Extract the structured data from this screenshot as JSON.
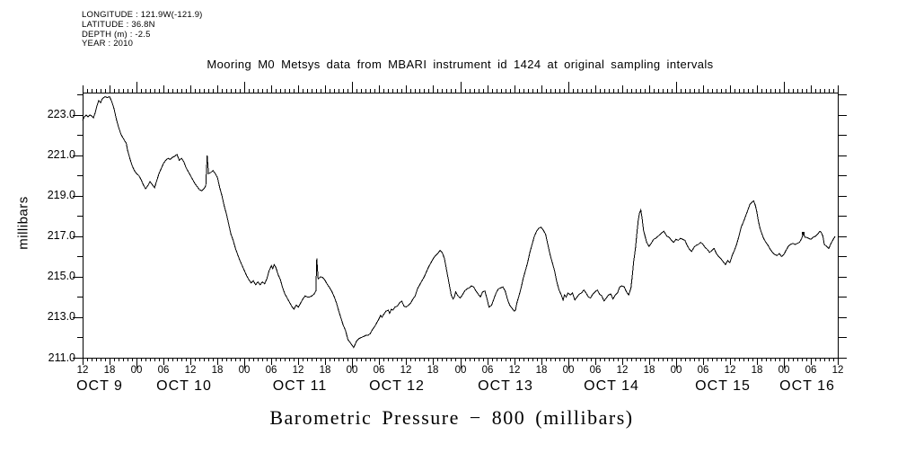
{
  "header": {
    "meta_lines": [
      "LONGITUDE : 121.9W(-121.9)",
      "LATITUDE : 36.8N",
      "DEPTH (m) : -2.5",
      "YEAR : 2010"
    ],
    "title": "Mooring M0 Metsys data from MBARI instrument id 1424 at original sampling intervals"
  },
  "footer": {
    "x_axis_title": "Barometric Pressure − 800 (millibars)"
  },
  "chart_data": {
    "type": "line",
    "title": "Mooring M0 Metsys data from MBARI instrument id 1424 at original sampling intervals",
    "ylabel": "millibars",
    "xlabel": "Barometric Pressure − 800 (millibars)",
    "line_color": "#000000",
    "background_color": "#ffffff",
    "grid": false,
    "ylim": [
      211.0,
      224.1
    ],
    "xlim_hours": [
      0,
      168
    ],
    "x_epoch": "2010-10-09 12:00",
    "y_tick_labels": [
      "223.0",
      "221.0",
      "219.0",
      "217.0",
      "215.0",
      "213.0",
      "211.0"
    ],
    "y_minor_tick_step": 1,
    "x_hour_label_step": 6,
    "x_minor_tick_step_hours": 1,
    "x_hour_labels": [
      "12",
      "18",
      "00",
      "06",
      "12",
      "18",
      "00",
      "06",
      "12",
      "18",
      "00",
      "06",
      "12",
      "18",
      "00",
      "06",
      "12",
      "18",
      "00",
      "06",
      "12",
      "18",
      "00",
      "06",
      "12",
      "18",
      "00",
      "06",
      "12"
    ],
    "x_date_labels": [
      {
        "label": "OCT 9",
        "hour": 3.8
      },
      {
        "label": "OCT 10",
        "hour": 22.6
      },
      {
        "label": "OCT 11",
        "hour": 48.3
      },
      {
        "label": "OCT 12",
        "hour": 69.9
      },
      {
        "label": "OCT 13",
        "hour": 94.1
      },
      {
        "label": "OCT 14",
        "hour": 117.7
      },
      {
        "label": "OCT 15",
        "hour": 142.4
      },
      {
        "label": "OCT 16",
        "hour": 161.2
      }
    ],
    "marker_point": {
      "hour": 160.3,
      "value": 217.15
    },
    "points": [
      [
        0,
        222.75
      ],
      [
        0.4,
        222.9
      ],
      [
        0.8,
        223.0
      ],
      [
        1.2,
        222.9
      ],
      [
        1.6,
        223.0
      ],
      [
        2,
        222.95
      ],
      [
        2.4,
        222.85
      ],
      [
        2.8,
        223.1
      ],
      [
        3.2,
        223.45
      ],
      [
        3.6,
        223.7
      ],
      [
        4,
        223.6
      ],
      [
        4.4,
        223.8
      ],
      [
        5,
        223.9
      ],
      [
        5.5,
        223.85
      ],
      [
        6,
        223.9
      ],
      [
        6.5,
        223.65
      ],
      [
        7,
        223.3
      ],
      [
        7.5,
        222.8
      ],
      [
        8,
        222.4
      ],
      [
        8.5,
        222.05
      ],
      [
        9,
        221.85
      ],
      [
        9.4,
        221.7
      ],
      [
        9.7,
        221.6
      ],
      [
        10,
        221.25
      ],
      [
        10.5,
        220.85
      ],
      [
        11,
        220.5
      ],
      [
        11.5,
        220.25
      ],
      [
        12,
        220.1
      ],
      [
        12.5,
        220.0
      ],
      [
        13,
        219.8
      ],
      [
        13.5,
        219.55
      ],
      [
        14,
        219.35
      ],
      [
        14.5,
        219.5
      ],
      [
        15,
        219.7
      ],
      [
        15.5,
        219.55
      ],
      [
        16,
        219.4
      ],
      [
        16.5,
        219.75
      ],
      [
        17,
        220.1
      ],
      [
        17.5,
        220.35
      ],
      [
        18,
        220.6
      ],
      [
        18.5,
        220.75
      ],
      [
        19,
        220.85
      ],
      [
        19.5,
        220.8
      ],
      [
        20,
        220.9
      ],
      [
        20.5,
        220.95
      ],
      [
        21,
        221.05
      ],
      [
        21.5,
        220.75
      ],
      [
        22,
        220.85
      ],
      [
        22.5,
        220.7
      ],
      [
        23,
        220.4
      ],
      [
        23.5,
        220.2
      ],
      [
        24,
        220.0
      ],
      [
        24.5,
        219.8
      ],
      [
        25,
        219.6
      ],
      [
        25.5,
        219.45
      ],
      [
        26,
        219.3
      ],
      [
        26.5,
        219.25
      ],
      [
        27,
        219.35
      ],
      [
        27.4,
        219.5
      ],
      [
        27.7,
        221.0
      ],
      [
        28,
        220.1
      ],
      [
        28.5,
        220.15
      ],
      [
        29,
        220.25
      ],
      [
        29.5,
        220.1
      ],
      [
        30,
        219.9
      ],
      [
        30.5,
        219.4
      ],
      [
        31,
        219.0
      ],
      [
        31.5,
        218.5
      ],
      [
        32,
        218.1
      ],
      [
        32.5,
        217.6
      ],
      [
        33,
        217.1
      ],
      [
        33.5,
        216.8
      ],
      [
        34,
        216.4
      ],
      [
        34.5,
        216.1
      ],
      [
        35,
        215.8
      ],
      [
        35.5,
        215.55
      ],
      [
        36,
        215.3
      ],
      [
        36.5,
        215.05
      ],
      [
        37,
        214.85
      ],
      [
        37.5,
        214.7
      ],
      [
        38,
        214.8
      ],
      [
        38.5,
        214.6
      ],
      [
        39,
        214.75
      ],
      [
        39.5,
        214.6
      ],
      [
        40,
        214.75
      ],
      [
        40.5,
        214.65
      ],
      [
        41,
        214.9
      ],
      [
        41.5,
        215.3
      ],
      [
        42,
        215.55
      ],
      [
        42.3,
        215.4
      ],
      [
        42.6,
        215.6
      ],
      [
        43,
        215.45
      ],
      [
        43.5,
        215.1
      ],
      [
        44,
        214.85
      ],
      [
        44.5,
        214.45
      ],
      [
        45,
        214.15
      ],
      [
        45.5,
        213.95
      ],
      [
        46,
        213.75
      ],
      [
        46.5,
        213.55
      ],
      [
        47,
        213.4
      ],
      [
        47.5,
        213.6
      ],
      [
        48,
        213.5
      ],
      [
        48.5,
        213.7
      ],
      [
        49,
        213.9
      ],
      [
        49.5,
        214.05
      ],
      [
        50,
        214.0
      ],
      [
        50.5,
        214.0
      ],
      [
        51,
        214.05
      ],
      [
        51.5,
        214.15
      ],
      [
        51.9,
        214.3
      ],
      [
        52.1,
        215.9
      ],
      [
        52.4,
        214.9
      ],
      [
        53,
        215.0
      ],
      [
        53.5,
        214.95
      ],
      [
        54,
        214.8
      ],
      [
        54.5,
        214.6
      ],
      [
        55,
        214.45
      ],
      [
        55.5,
        214.25
      ],
      [
        56,
        214.0
      ],
      [
        56.5,
        213.7
      ],
      [
        57,
        213.3
      ],
      [
        57.5,
        212.95
      ],
      [
        58,
        212.6
      ],
      [
        58.5,
        212.35
      ],
      [
        59,
        211.9
      ],
      [
        59.5,
        211.75
      ],
      [
        60,
        211.6
      ],
      [
        60.3,
        211.5
      ],
      [
        60.7,
        211.7
      ],
      [
        61,
        211.85
      ],
      [
        61.5,
        211.95
      ],
      [
        62,
        212.0
      ],
      [
        62.5,
        212.05
      ],
      [
        63,
        212.1
      ],
      [
        63.5,
        212.1
      ],
      [
        64,
        212.2
      ],
      [
        64.5,
        212.4
      ],
      [
        65,
        212.55
      ],
      [
        65.5,
        212.75
      ],
      [
        66,
        212.95
      ],
      [
        66.3,
        213.1
      ],
      [
        66.6,
        213.0
      ],
      [
        67,
        213.15
      ],
      [
        67.5,
        213.3
      ],
      [
        68,
        213.35
      ],
      [
        68.3,
        213.2
      ],
      [
        68.7,
        213.4
      ],
      [
        69,
        213.35
      ],
      [
        69.5,
        213.5
      ],
      [
        70,
        213.55
      ],
      [
        70.5,
        213.7
      ],
      [
        71,
        213.8
      ],
      [
        71.5,
        213.55
      ],
      [
        72,
        213.5
      ],
      [
        72.5,
        213.6
      ],
      [
        73,
        213.7
      ],
      [
        73.5,
        213.9
      ],
      [
        74,
        214.05
      ],
      [
        74.5,
        214.4
      ],
      [
        75,
        214.6
      ],
      [
        75.5,
        214.8
      ],
      [
        76,
        215.0
      ],
      [
        76.5,
        215.25
      ],
      [
        77,
        215.5
      ],
      [
        77.5,
        215.7
      ],
      [
        78,
        215.9
      ],
      [
        78.5,
        216.05
      ],
      [
        79,
        216.15
      ],
      [
        79.5,
        216.3
      ],
      [
        80,
        216.2
      ],
      [
        80.5,
        215.9
      ],
      [
        81,
        215.3
      ],
      [
        81.5,
        214.7
      ],
      [
        82,
        214.1
      ],
      [
        82.4,
        213.9
      ],
      [
        82.7,
        214.0
      ],
      [
        83,
        214.25
      ],
      [
        83.5,
        214.05
      ],
      [
        84,
        213.95
      ],
      [
        84.5,
        214.1
      ],
      [
        85,
        214.3
      ],
      [
        85.5,
        214.4
      ],
      [
        86,
        214.45
      ],
      [
        86.5,
        214.55
      ],
      [
        87,
        214.5
      ],
      [
        87.5,
        214.3
      ],
      [
        88,
        214.15
      ],
      [
        88.5,
        214.0
      ],
      [
        89,
        214.25
      ],
      [
        89.5,
        214.3
      ],
      [
        90,
        213.9
      ],
      [
        90.4,
        213.5
      ],
      [
        91,
        213.6
      ],
      [
        91.5,
        213.9
      ],
      [
        92,
        214.2
      ],
      [
        92.5,
        214.4
      ],
      [
        93,
        214.45
      ],
      [
        93.5,
        214.5
      ],
      [
        94,
        214.3
      ],
      [
        94.5,
        213.9
      ],
      [
        95,
        213.6
      ],
      [
        95.5,
        213.45
      ],
      [
        96,
        213.3
      ],
      [
        96.3,
        213.35
      ],
      [
        96.6,
        213.7
      ],
      [
        97,
        214.0
      ],
      [
        97.5,
        214.4
      ],
      [
        98,
        214.9
      ],
      [
        98.5,
        215.3
      ],
      [
        99,
        215.7
      ],
      [
        99.5,
        216.2
      ],
      [
        100,
        216.6
      ],
      [
        100.5,
        217.0
      ],
      [
        101,
        217.25
      ],
      [
        101.5,
        217.4
      ],
      [
        102,
        217.45
      ],
      [
        102.5,
        217.3
      ],
      [
        103,
        217.1
      ],
      [
        103.5,
        216.6
      ],
      [
        104,
        216.1
      ],
      [
        104.5,
        215.7
      ],
      [
        105,
        215.3
      ],
      [
        105.5,
        214.75
      ],
      [
        106,
        214.35
      ],
      [
        106.5,
        214.1
      ],
      [
        106.9,
        213.85
      ],
      [
        107.2,
        214.1
      ],
      [
        107.6,
        214.0
      ],
      [
        108,
        214.2
      ],
      [
        108.5,
        214.1
      ],
      [
        109,
        214.2
      ],
      [
        109.5,
        213.85
      ],
      [
        110,
        214.0
      ],
      [
        110.5,
        214.15
      ],
      [
        111,
        214.2
      ],
      [
        111.5,
        214.35
      ],
      [
        112,
        214.2
      ],
      [
        112.5,
        214.0
      ],
      [
        113,
        213.95
      ],
      [
        113.5,
        214.15
      ],
      [
        114,
        214.25
      ],
      [
        114.5,
        214.35
      ],
      [
        115,
        214.15
      ],
      [
        115.5,
        214.05
      ],
      [
        116,
        213.8
      ],
      [
        116.5,
        213.95
      ],
      [
        117,
        214.1
      ],
      [
        117.5,
        214.15
      ],
      [
        118,
        213.9
      ],
      [
        118.5,
        214.1
      ],
      [
        119,
        214.2
      ],
      [
        119.5,
        214.5
      ],
      [
        120,
        214.55
      ],
      [
        120.5,
        214.5
      ],
      [
        121,
        214.25
      ],
      [
        121.5,
        214.1
      ],
      [
        122,
        214.45
      ],
      [
        122.3,
        215.05
      ],
      [
        122.6,
        215.75
      ],
      [
        123,
        216.4
      ],
      [
        123.3,
        217.1
      ],
      [
        123.6,
        217.75
      ],
      [
        123.9,
        218.15
      ],
      [
        124.2,
        218.3
      ],
      [
        124.5,
        217.85
      ],
      [
        124.8,
        217.3
      ],
      [
        125.2,
        216.95
      ],
      [
        125.5,
        216.7
      ],
      [
        126,
        216.5
      ],
      [
        126.5,
        216.65
      ],
      [
        127,
        216.85
      ],
      [
        127.5,
        216.9
      ],
      [
        128,
        217.0
      ],
      [
        128.5,
        217.1
      ],
      [
        129,
        217.2
      ],
      [
        129.3,
        217.25
      ],
      [
        129.7,
        217.1
      ],
      [
        130,
        217.0
      ],
      [
        130.5,
        216.95
      ],
      [
        131,
        216.8
      ],
      [
        131.5,
        216.7
      ],
      [
        132,
        216.85
      ],
      [
        132.5,
        216.8
      ],
      [
        133,
        216.9
      ],
      [
        133.5,
        216.85
      ],
      [
        134,
        216.8
      ],
      [
        134.5,
        216.55
      ],
      [
        135,
        216.35
      ],
      [
        135.5,
        216.25
      ],
      [
        136,
        216.45
      ],
      [
        136.5,
        216.55
      ],
      [
        137,
        216.6
      ],
      [
        137.5,
        216.7
      ],
      [
        138,
        216.6
      ],
      [
        138.5,
        216.45
      ],
      [
        139,
        216.35
      ],
      [
        139.5,
        216.2
      ],
      [
        140,
        216.3
      ],
      [
        140.5,
        216.4
      ],
      [
        141,
        216.15
      ],
      [
        141.5,
        216.0
      ],
      [
        142,
        215.9
      ],
      [
        142.5,
        215.75
      ],
      [
        143,
        215.6
      ],
      [
        143.5,
        215.8
      ],
      [
        144,
        215.7
      ],
      [
        144.5,
        216.05
      ],
      [
        145,
        216.3
      ],
      [
        145.5,
        216.6
      ],
      [
        146,
        217.0
      ],
      [
        146.5,
        217.45
      ],
      [
        147,
        217.7
      ],
      [
        147.5,
        218.0
      ],
      [
        148,
        218.3
      ],
      [
        148.5,
        218.6
      ],
      [
        149,
        218.7
      ],
      [
        149.3,
        218.75
      ],
      [
        149.7,
        218.5
      ],
      [
        150,
        218.2
      ],
      [
        150.3,
        217.8
      ],
      [
        150.7,
        217.4
      ],
      [
        151,
        217.2
      ],
      [
        151.5,
        216.9
      ],
      [
        152,
        216.7
      ],
      [
        152.5,
        216.55
      ],
      [
        153,
        216.35
      ],
      [
        153.5,
        216.2
      ],
      [
        154,
        216.1
      ],
      [
        154.5,
        216.05
      ],
      [
        155,
        216.15
      ],
      [
        155.5,
        216.0
      ],
      [
        156,
        216.1
      ],
      [
        156.5,
        216.3
      ],
      [
        157,
        216.5
      ],
      [
        157.5,
        216.6
      ],
      [
        158,
        216.65
      ],
      [
        158.5,
        216.6
      ],
      [
        159,
        216.65
      ],
      [
        159.5,
        216.7
      ],
      [
        160,
        216.9
      ],
      [
        160.3,
        217.15
      ],
      [
        160.7,
        216.95
      ],
      [
        161,
        216.95
      ],
      [
        161.5,
        216.9
      ],
      [
        162,
        216.85
      ],
      [
        162.5,
        216.95
      ],
      [
        163,
        217.0
      ],
      [
        163.5,
        217.1
      ],
      [
        164,
        217.25
      ],
      [
        164.3,
        217.2
      ],
      [
        164.7,
        217.0
      ],
      [
        165,
        216.6
      ],
      [
        165.5,
        216.5
      ],
      [
        166,
        216.4
      ],
      [
        166.5,
        216.65
      ],
      [
        167,
        216.85
      ],
      [
        167.4,
        217.0
      ]
    ]
  }
}
